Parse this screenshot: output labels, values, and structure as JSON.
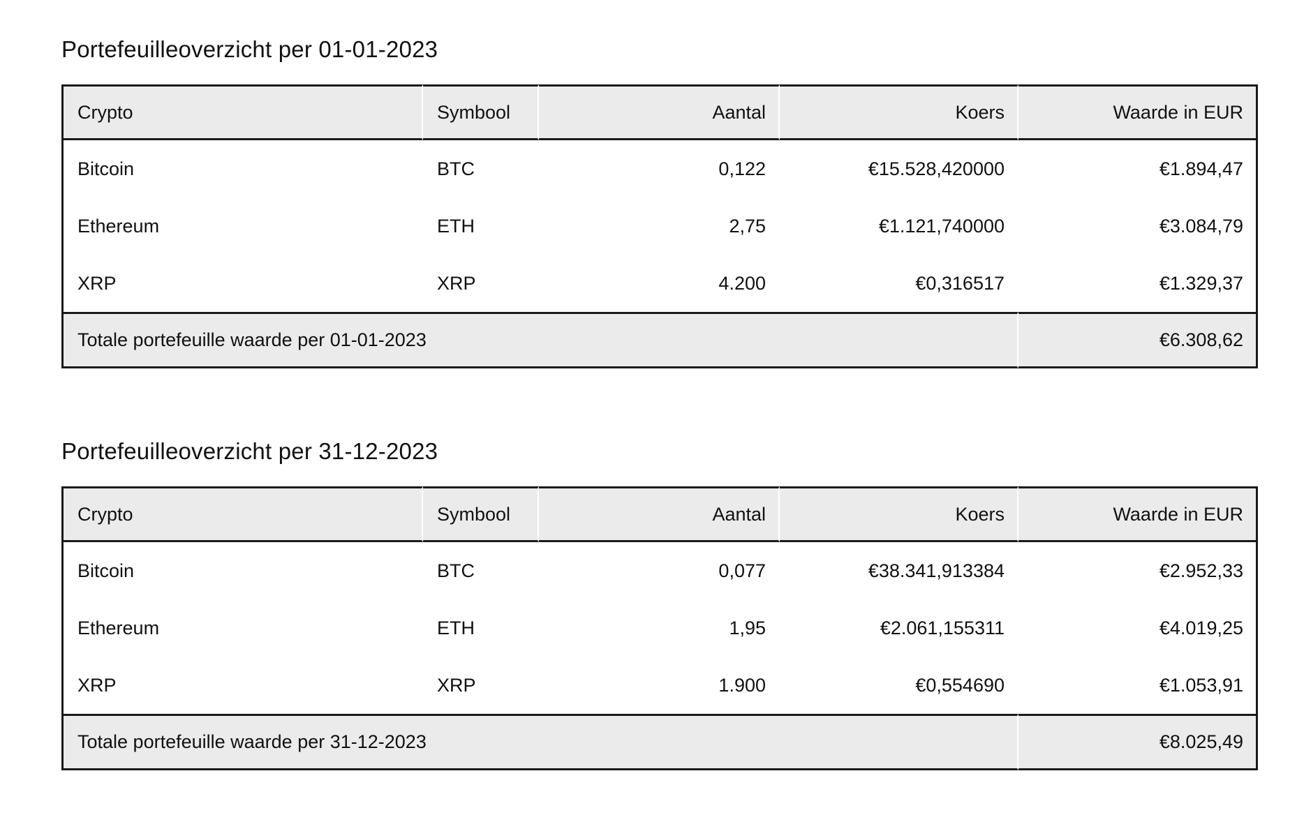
{
  "colors": {
    "header_bg": "#ebebeb",
    "border_black": "#1a1a1a",
    "divider": "#ffffff",
    "text": "#111111",
    "page_bg": "#ffffff"
  },
  "tables": [
    {
      "title": "Portefeuilleoverzicht per 01-01-2023",
      "columns": [
        "Crypto",
        "Symbool",
        "Aantal",
        "Koers",
        "Waarde in EUR"
      ],
      "rows": [
        [
          "Bitcoin",
          "BTC",
          "0,122",
          "€15.528,420000",
          "€1.894,47"
        ],
        [
          "Ethereum",
          "ETH",
          "2,75",
          "€1.121,740000",
          "€3.084,79"
        ],
        [
          "XRP",
          "XRP",
          "4.200",
          "€0,316517",
          "€1.329,37"
        ]
      ],
      "total_label": "Totale portefeuille waarde per 01-01-2023",
      "total_value": "€6.308,62"
    },
    {
      "title": "Portefeuilleoverzicht per 31-12-2023",
      "columns": [
        "Crypto",
        "Symbool",
        "Aantal",
        "Koers",
        "Waarde in EUR"
      ],
      "rows": [
        [
          "Bitcoin",
          "BTC",
          "0,077",
          "€38.341,913384",
          "€2.952,33"
        ],
        [
          "Ethereum",
          "ETH",
          "1,95",
          "€2.061,155311",
          "€4.019,25"
        ],
        [
          "XRP",
          "XRP",
          "1.900",
          "€0,554690",
          "€1.053,91"
        ]
      ],
      "total_label": "Totale portefeuille waarde per 31-12-2023",
      "total_value": "€8.025,49"
    }
  ]
}
